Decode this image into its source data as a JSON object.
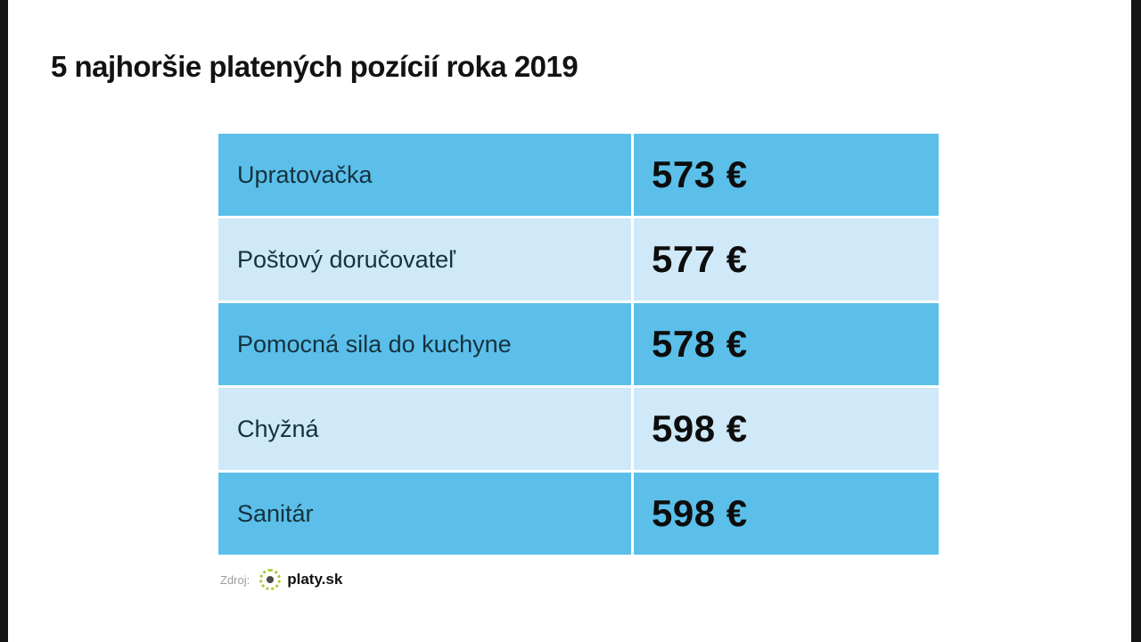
{
  "page": {
    "title": "5 najhoršie platených pozícií roka 2019"
  },
  "table": {
    "rows": [
      {
        "label": "Upratovačka",
        "value": "573 €"
      },
      {
        "label": "Poštový doručovateľ",
        "value": "577 €"
      },
      {
        "label": "Pomocná sila do kuchyne",
        "value": "578 €"
      },
      {
        "label": "Chyžná",
        "value": "598 €"
      },
      {
        "label": "Sanitár",
        "value": "598 €"
      }
    ]
  },
  "footer": {
    "source_label": "Zdroj:",
    "source_name": "platy.sk"
  },
  "colors": {
    "row_dark": "#5bbfea",
    "row_light": "#cfe9f8",
    "divider": "#ffffff",
    "title_text": "#121212",
    "value_text": "#0d0d0d",
    "edge_strip": "#151515",
    "logo_ring_green": "#a8ce3b",
    "logo_dot_gray": "#4a4a4a"
  },
  "chart_data": {
    "type": "table",
    "title": "5 najhoršie platených pozícií roka 2019",
    "categories": [
      "Upratovačka",
      "Poštový doručovateľ",
      "Pomocná sila do kuchyne",
      "Chyžná",
      "Sanitár"
    ],
    "values": [
      573,
      577,
      578,
      598,
      598
    ],
    "unit": "€",
    "source": "platy.sk",
    "layout": "two-column table, alternating dark/light blue rows, white column divider"
  }
}
